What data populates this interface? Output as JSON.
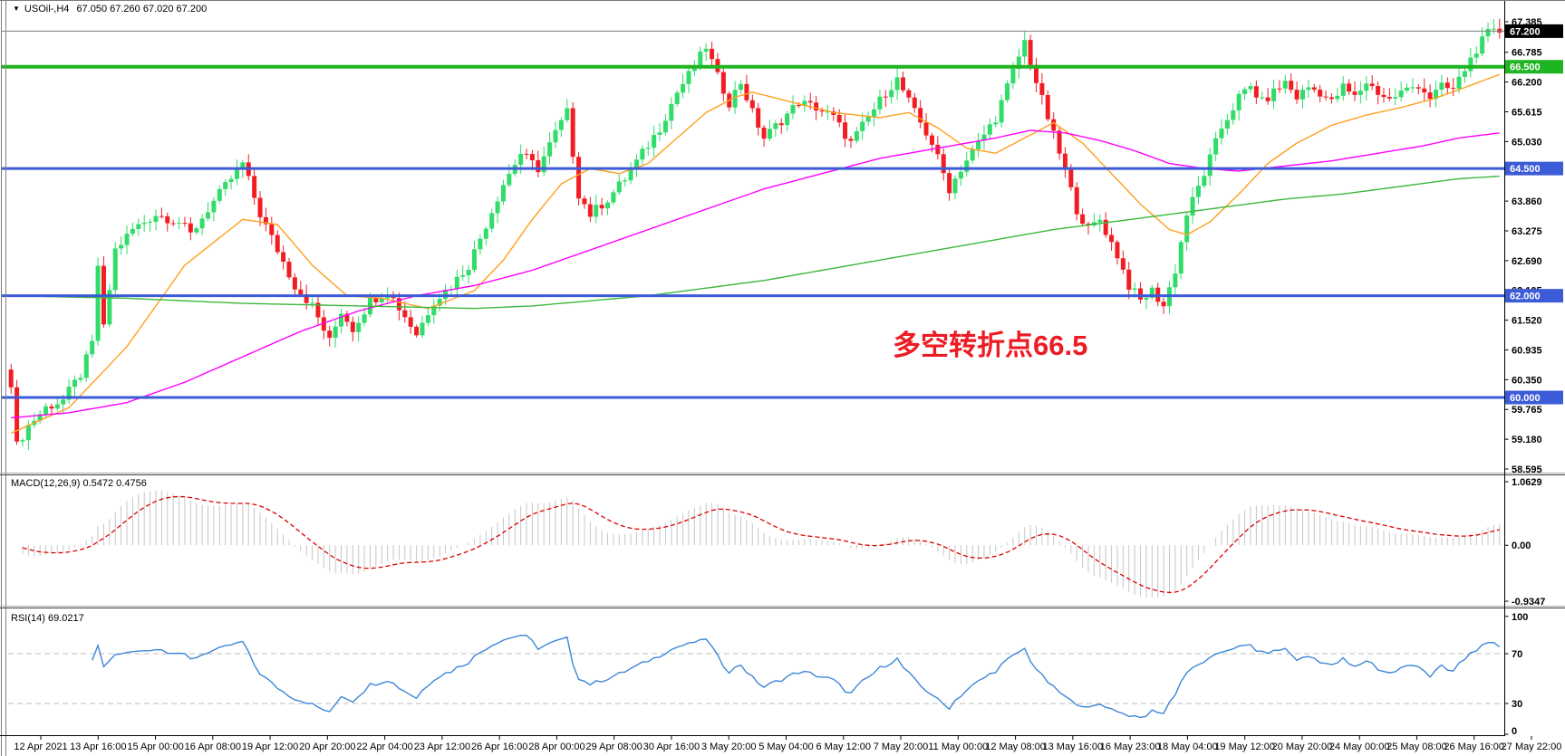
{
  "chart": {
    "symbol_label": "USOil-,H4",
    "ohlc": "67.050 67.260 67.020 67.200",
    "dropdown_icon": "chart-menu-arrow"
  },
  "annotation": {
    "text": "多空转折点66.5",
    "color": "#ed1c24"
  },
  "macd": {
    "label": "MACD(12,26,9) 0.5472 0.4756",
    "ticks": [
      {
        "label": "1.0629",
        "value": 1.0629
      },
      {
        "label": "0.00",
        "value": 0.0
      },
      {
        "label": "-0.9347",
        "value": -0.9347
      }
    ]
  },
  "rsi": {
    "label": "RSI(14) 69.0217",
    "ticks": [
      {
        "label": "100",
        "value": 100
      },
      {
        "label": "70",
        "value": 70
      },
      {
        "label": "30",
        "value": 30
      },
      {
        "label": "0",
        "value": 0
      }
    ],
    "guide_levels": [
      70,
      30
    ]
  },
  "colors": {
    "bull": "#2fdd68",
    "bear": "#f21d22",
    "ma_fast": "#ffa01e",
    "ma_mid": "#ff00ff",
    "ma_slow": "#3cb83c",
    "level_green": "#1fb421",
    "level_blue": "#3c5bd7",
    "price_line_gray": "#808080",
    "hist": "#c6c6c6",
    "signal": "#dd0000",
    "rsi_line": "#3d87d8",
    "badge_current_bg": "#000000",
    "axis_text": "#000000",
    "grid_dash": "#bdbdbd"
  },
  "chart_data": {
    "type": "candlestick",
    "symbol": "USOil",
    "timeframe": "H4",
    "bars": 258,
    "ylim": [
      58.5,
      67.52
    ],
    "price_ticks": [
      {
        "label": "67.385",
        "value": 67.385
      },
      {
        "label": "66.785",
        "value": 66.785
      },
      {
        "label": "66.200",
        "value": 66.2
      },
      {
        "label": "65.615",
        "value": 65.615
      },
      {
        "label": "65.030",
        "value": 65.03
      },
      {
        "label": "64.445",
        "value": 64.445
      },
      {
        "label": "63.860",
        "value": 63.86
      },
      {
        "label": "63.275",
        "value": 63.275
      },
      {
        "label": "62.690",
        "value": 62.69
      },
      {
        "label": "62.105",
        "value": 62.105
      },
      {
        "label": "61.520",
        "value": 61.52
      },
      {
        "label": "60.935",
        "value": 60.935
      },
      {
        "label": "60.350",
        "value": 60.35
      },
      {
        "label": "59.765",
        "value": 59.765
      },
      {
        "label": "59.180",
        "value": 59.18
      },
      {
        "label": "58.595",
        "value": 58.595
      }
    ],
    "price_badges": [
      {
        "label": "67.200",
        "value": 67.2,
        "bg": "#000000",
        "fg": "#ffffff",
        "kind": "current-price"
      },
      {
        "label": "66.500",
        "value": 66.5,
        "bg": "#1fb421",
        "fg": "#ffffff",
        "kind": "level"
      },
      {
        "label": "64.500",
        "value": 64.5,
        "bg": "#3c5bd7",
        "fg": "#ffffff",
        "kind": "level"
      },
      {
        "label": "62.000",
        "value": 62.0,
        "bg": "#3c5bd7",
        "fg": "#ffffff",
        "kind": "level"
      },
      {
        "label": "60.000",
        "value": 60.0,
        "bg": "#3c5bd7",
        "fg": "#ffffff",
        "kind": "level"
      }
    ],
    "hlines": [
      {
        "value": 67.2,
        "color": "#808080",
        "width": 1,
        "kind": "current-price-line"
      },
      {
        "value": 66.5,
        "color": "#1fb421",
        "width": 4,
        "kind": "resistance-line"
      },
      {
        "value": 64.5,
        "color": "#3c5bd7",
        "width": 3,
        "kind": "level-line"
      },
      {
        "value": 62.0,
        "color": "#3c5bd7",
        "width": 3,
        "kind": "level-line"
      },
      {
        "value": 60.0,
        "color": "#3c5bd7",
        "width": 3,
        "kind": "level-line"
      }
    ],
    "close_path": [
      [
        0,
        60.3
      ],
      [
        1,
        59.05
      ],
      [
        3,
        59.45
      ],
      [
        6,
        59.8
      ],
      [
        9,
        59.95
      ],
      [
        12,
        60.45
      ],
      [
        14,
        61.05
      ],
      [
        15,
        62.6
      ],
      [
        16,
        61.35
      ],
      [
        18,
        62.9
      ],
      [
        21,
        63.3
      ],
      [
        25,
        63.6
      ],
      [
        29,
        63.45
      ],
      [
        31,
        63.2
      ],
      [
        34,
        63.7
      ],
      [
        38,
        64.3
      ],
      [
        40,
        64.6
      ],
      [
        43,
        63.6
      ],
      [
        46,
        62.9
      ],
      [
        49,
        62.2
      ],
      [
        52,
        61.8
      ],
      [
        55,
        61.1
      ],
      [
        57,
        61.7
      ],
      [
        59,
        61.35
      ],
      [
        62,
        61.9
      ],
      [
        65,
        62.1
      ],
      [
        68,
        61.6
      ],
      [
        70,
        61.25
      ],
      [
        73,
        61.9
      ],
      [
        76,
        62.2
      ],
      [
        79,
        62.6
      ],
      [
        82,
        63.4
      ],
      [
        85,
        64.2
      ],
      [
        88,
        64.8
      ],
      [
        91,
        64.5
      ],
      [
        94,
        65.2
      ],
      [
        96,
        65.6
      ],
      [
        98,
        64.0
      ],
      [
        100,
        63.6
      ],
      [
        103,
        63.9
      ],
      [
        106,
        64.3
      ],
      [
        109,
        64.8
      ],
      [
        112,
        65.3
      ],
      [
        115,
        66.0
      ],
      [
        118,
        66.5
      ],
      [
        120,
        66.9
      ],
      [
        122,
        66.3
      ],
      [
        124,
        65.8
      ],
      [
        126,
        66.2
      ],
      [
        128,
        65.6
      ],
      [
        130,
        65.1
      ],
      [
        133,
        65.45
      ],
      [
        136,
        65.8
      ],
      [
        139,
        65.7
      ],
      [
        142,
        65.5
      ],
      [
        145,
        65.0
      ],
      [
        148,
        65.5
      ],
      [
        151,
        66.0
      ],
      [
        153,
        66.25
      ],
      [
        156,
        65.6
      ],
      [
        159,
        65.0
      ],
      [
        162,
        64.1
      ],
      [
        164,
        64.5
      ],
      [
        167,
        65.0
      ],
      [
        170,
        65.5
      ],
      [
        173,
        66.4
      ],
      [
        175,
        67.0
      ],
      [
        177,
        66.2
      ],
      [
        179,
        65.5
      ],
      [
        181,
        64.8
      ],
      [
        184,
        63.7
      ],
      [
        186,
        63.3
      ],
      [
        188,
        63.5
      ],
      [
        191,
        62.8
      ],
      [
        193,
        62.2
      ],
      [
        195,
        61.9
      ],
      [
        197,
        62.1
      ],
      [
        199,
        61.8
      ],
      [
        201,
        62.5
      ],
      [
        203,
        63.6
      ],
      [
        206,
        64.4
      ],
      [
        209,
        65.3
      ],
      [
        212,
        65.9
      ],
      [
        214,
        66.1
      ],
      [
        216,
        65.8
      ],
      [
        218,
        66.0
      ],
      [
        220,
        66.2
      ],
      [
        222,
        65.9
      ],
      [
        224,
        66.1
      ],
      [
        226,
        66.0
      ],
      [
        228,
        65.8
      ],
      [
        230,
        66.1
      ],
      [
        232,
        65.9
      ],
      [
        234,
        66.2
      ],
      [
        236,
        66.0
      ],
      [
        238,
        65.85
      ],
      [
        240,
        66.0
      ],
      [
        243,
        66.15
      ],
      [
        245,
        65.9
      ],
      [
        247,
        66.1
      ],
      [
        249,
        66.05
      ],
      [
        251,
        66.45
      ],
      [
        253,
        66.85
      ],
      [
        255,
        67.15
      ],
      [
        257,
        67.2
      ]
    ],
    "ma_fast_path": [
      [
        0,
        59.3
      ],
      [
        10,
        59.8
      ],
      [
        20,
        61.0
      ],
      [
        30,
        62.6
      ],
      [
        40,
        63.5
      ],
      [
        46,
        63.4
      ],
      [
        52,
        62.6
      ],
      [
        58,
        62.0
      ],
      [
        64,
        61.95
      ],
      [
        72,
        61.75
      ],
      [
        80,
        62.1
      ],
      [
        85,
        62.7
      ],
      [
        90,
        63.5
      ],
      [
        95,
        64.2
      ],
      [
        100,
        64.5
      ],
      [
        105,
        64.4
      ],
      [
        110,
        64.6
      ],
      [
        115,
        65.1
      ],
      [
        120,
        65.6
      ],
      [
        125,
        65.9
      ],
      [
        128,
        66.0
      ],
      [
        135,
        65.8
      ],
      [
        142,
        65.6
      ],
      [
        150,
        65.5
      ],
      [
        155,
        65.6
      ],
      [
        160,
        65.3
      ],
      [
        165,
        64.9
      ],
      [
        170,
        64.8
      ],
      [
        175,
        65.1
      ],
      [
        180,
        65.4
      ],
      [
        185,
        65.0
      ],
      [
        190,
        64.4
      ],
      [
        195,
        63.8
      ],
      [
        200,
        63.3
      ],
      [
        203,
        63.2
      ],
      [
        207,
        63.45
      ],
      [
        212,
        64.0
      ],
      [
        217,
        64.6
      ],
      [
        222,
        65.0
      ],
      [
        228,
        65.35
      ],
      [
        234,
        65.55
      ],
      [
        240,
        65.7
      ],
      [
        245,
        65.85
      ],
      [
        250,
        66.05
      ],
      [
        257,
        66.35
      ]
    ],
    "ma_mid_path": [
      [
        0,
        59.6
      ],
      [
        10,
        59.7
      ],
      [
        20,
        59.9
      ],
      [
        30,
        60.3
      ],
      [
        40,
        60.8
      ],
      [
        50,
        61.3
      ],
      [
        60,
        61.7
      ],
      [
        70,
        62.0
      ],
      [
        80,
        62.2
      ],
      [
        90,
        62.5
      ],
      [
        100,
        62.9
      ],
      [
        110,
        63.3
      ],
      [
        120,
        63.7
      ],
      [
        130,
        64.1
      ],
      [
        140,
        64.4
      ],
      [
        150,
        64.7
      ],
      [
        160,
        64.9
      ],
      [
        170,
        65.1
      ],
      [
        176,
        65.25
      ],
      [
        182,
        65.2
      ],
      [
        188,
        65.05
      ],
      [
        194,
        64.85
      ],
      [
        200,
        64.6
      ],
      [
        206,
        64.5
      ],
      [
        212,
        64.45
      ],
      [
        220,
        64.55
      ],
      [
        228,
        64.65
      ],
      [
        236,
        64.8
      ],
      [
        244,
        64.95
      ],
      [
        250,
        65.1
      ],
      [
        257,
        65.2
      ]
    ],
    "ma_slow_path": [
      [
        0,
        62.0
      ],
      [
        20,
        61.95
      ],
      [
        40,
        61.85
      ],
      [
        60,
        61.8
      ],
      [
        80,
        61.75
      ],
      [
        90,
        61.8
      ],
      [
        100,
        61.9
      ],
      [
        110,
        62.0
      ],
      [
        120,
        62.15
      ],
      [
        130,
        62.3
      ],
      [
        140,
        62.5
      ],
      [
        150,
        62.7
      ],
      [
        160,
        62.9
      ],
      [
        170,
        63.1
      ],
      [
        180,
        63.3
      ],
      [
        190,
        63.45
      ],
      [
        200,
        63.6
      ],
      [
        210,
        63.75
      ],
      [
        220,
        63.9
      ],
      [
        230,
        64.0
      ],
      [
        240,
        64.15
      ],
      [
        250,
        64.3
      ],
      [
        257,
        64.35
      ]
    ],
    "macd_panel": {
      "ylim": [
        -0.99,
        1.15
      ],
      "params": [
        12,
        26,
        9
      ]
    },
    "rsi_panel": {
      "ylim": [
        0,
        100
      ],
      "period": 14
    },
    "x_labels": [
      "12 Apr 2021",
      "13 Apr 16:00",
      "15 Apr 00:00",
      "16 Apr 08:00",
      "19 Apr 12:00",
      "20 Apr 20:00",
      "22 Apr 04:00",
      "23 Apr 12:00",
      "26 Apr 16:00",
      "28 Apr 00:00",
      "29 Apr 08:00",
      "30 Apr 16:00",
      "3 May 20:00",
      "5 May 04:00",
      "6 May 12:00",
      "7 May 20:00",
      "11 May 00:00",
      "12 May 08:00",
      "13 May 16:00",
      "16 May 23:00",
      "18 May 04:00",
      "19 May 12:00",
      "20 May 20:00",
      "24 May 00:00",
      "25 May 08:00",
      "26 May 16:00",
      "27 May 22:00"
    ]
  }
}
